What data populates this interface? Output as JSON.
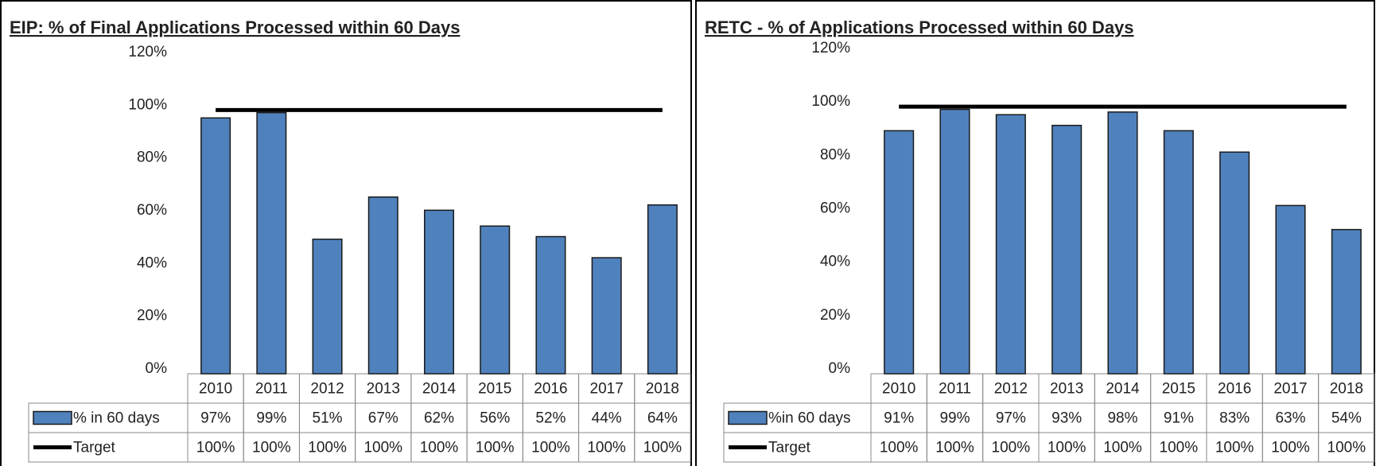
{
  "chart_data": [
    {
      "type": "bar",
      "title": "EIP: % of Final Applications Processed within 60 Days",
      "categories": [
        "2010",
        "2011",
        "2012",
        "2013",
        "2014",
        "2015",
        "2016",
        "2017",
        "2018"
      ],
      "series": [
        {
          "name": "% in 60 days",
          "type": "bar",
          "color": "#4f81bd",
          "values": [
            97,
            99,
            51,
            67,
            62,
            56,
            52,
            44,
            64
          ],
          "value_labels": [
            "97%",
            "99%",
            "51%",
            "67%",
            "62%",
            "56%",
            "52%",
            "44%",
            "64%"
          ]
        },
        {
          "name": "Target",
          "type": "line",
          "color": "#000000",
          "values": [
            100,
            100,
            100,
            100,
            100,
            100,
            100,
            100,
            100
          ],
          "value_labels": [
            "100%",
            "100%",
            "100%",
            "100%",
            "100%",
            "100%",
            "100%",
            "100%",
            "100%"
          ]
        }
      ],
      "ylim": [
        0,
        120
      ],
      "yticks": [
        {
          "value": 0,
          "label": "0%"
        },
        {
          "value": 20,
          "label": "20%"
        },
        {
          "value": 40,
          "label": "40%"
        },
        {
          "value": 60,
          "label": "60%"
        },
        {
          "value": 80,
          "label": "80%"
        },
        {
          "value": 100,
          "label": "100%"
        },
        {
          "value": 120,
          "label": "120%"
        }
      ],
      "grid": false
    },
    {
      "type": "bar",
      "title": "RETC - % of Applications Processed within 60 Days",
      "categories": [
        "2010",
        "2011",
        "2012",
        "2013",
        "2014",
        "2015",
        "2016",
        "2017",
        "2018"
      ],
      "series": [
        {
          "name": "%in 60 days",
          "type": "bar",
          "color": "#4f81bd",
          "values": [
            91,
            99,
            97,
            93,
            98,
            91,
            83,
            63,
            54
          ],
          "value_labels": [
            "91%",
            "99%",
            "97%",
            "93%",
            "98%",
            "91%",
            "83%",
            "63%",
            "54%"
          ]
        },
        {
          "name": "Target",
          "type": "line",
          "color": "#000000",
          "values": [
            100,
            100,
            100,
            100,
            100,
            100,
            100,
            100,
            100
          ],
          "value_labels": [
            "100%",
            "100%",
            "100%",
            "100%",
            "100%",
            "100%",
            "100%",
            "100%",
            "100%"
          ]
        }
      ],
      "ylim": [
        0,
        120
      ],
      "yticks": [
        {
          "value": 0,
          "label": "0%"
        },
        {
          "value": 20,
          "label": "20%"
        },
        {
          "value": 40,
          "label": "40%"
        },
        {
          "value": 60,
          "label": "60%"
        },
        {
          "value": 80,
          "label": "80%"
        },
        {
          "value": 100,
          "label": "100%"
        },
        {
          "value": 120,
          "label": "120%"
        }
      ],
      "grid": false
    }
  ]
}
